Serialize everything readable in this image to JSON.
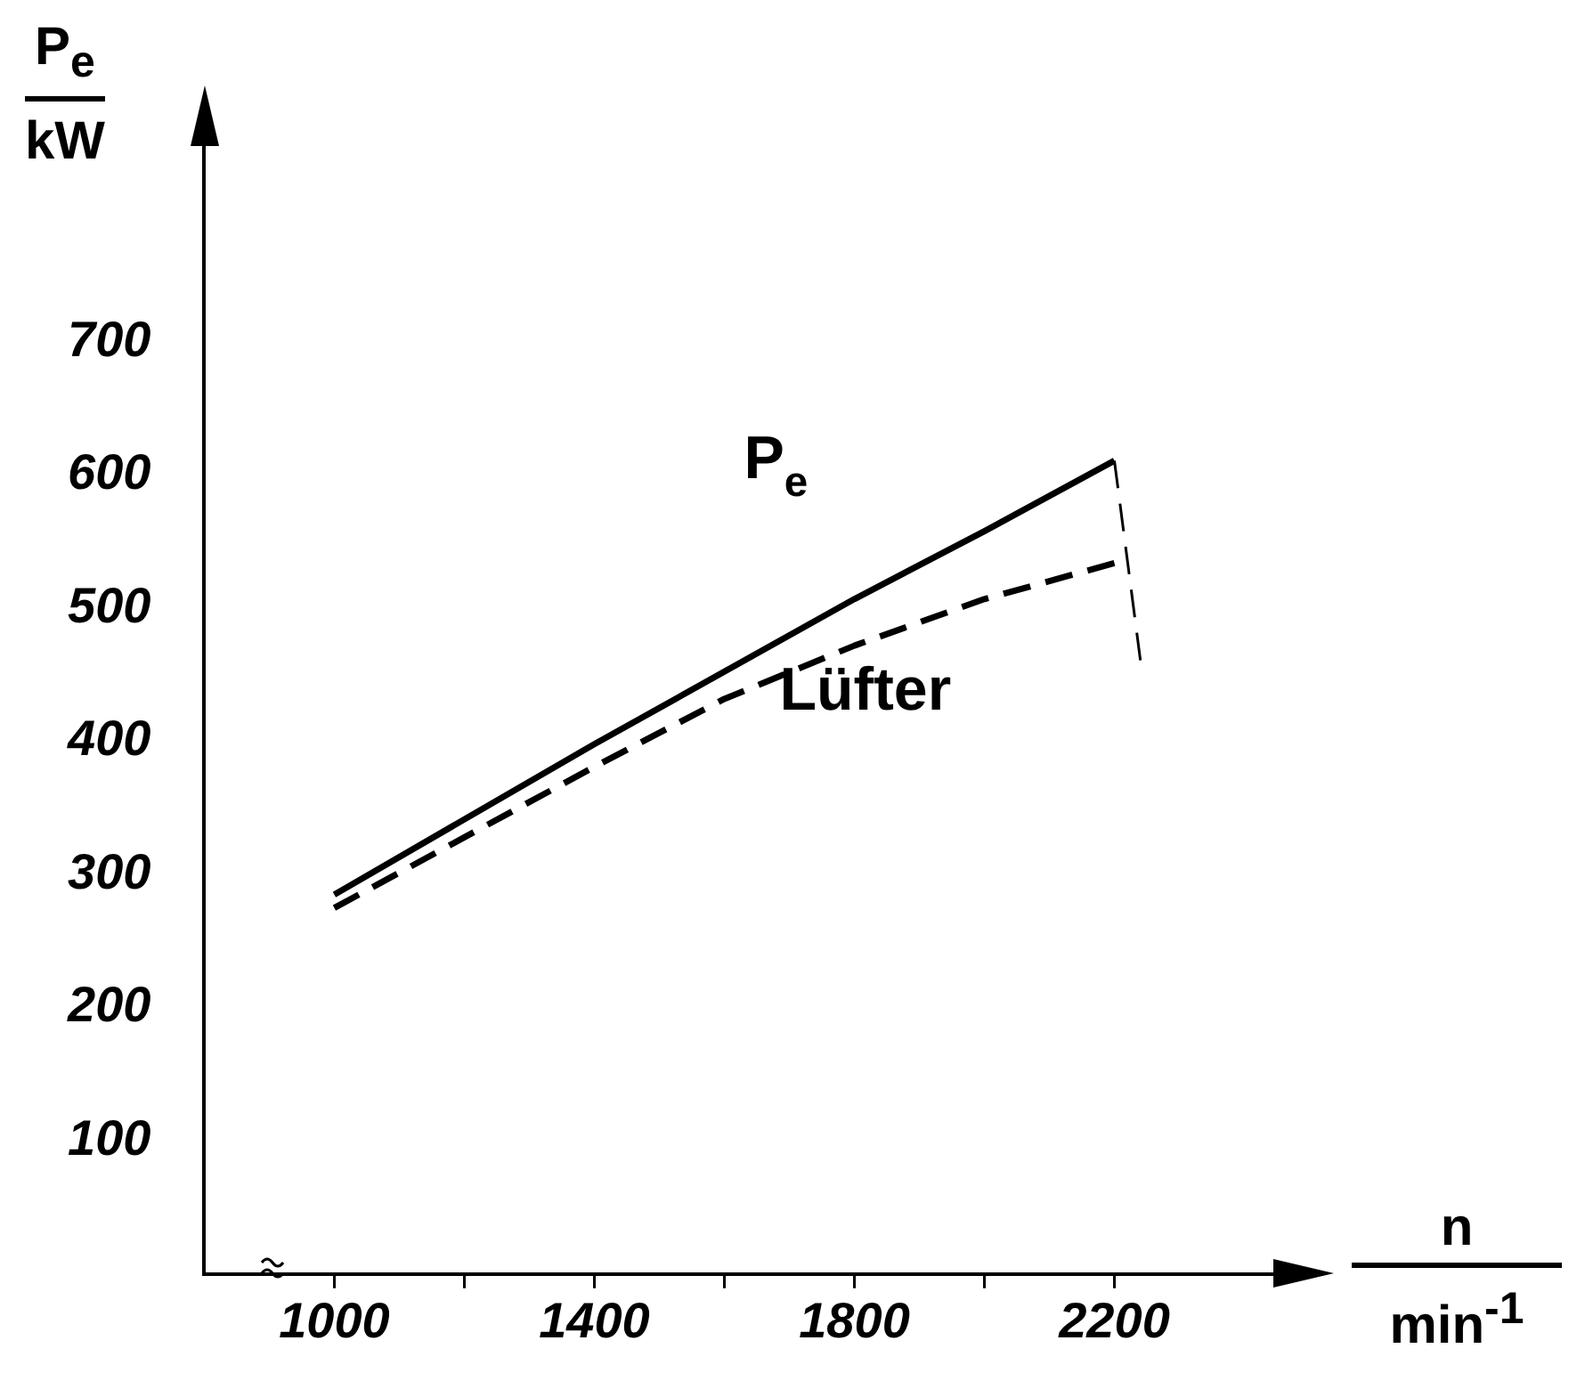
{
  "chart_data": {
    "type": "line",
    "xlabel": "n",
    "ylabel": "P$_{e}$",
    "annotations": [
      "kW",
      "min$^{-1}$"
    ],
    "xlim": [
      800,
      2450
    ],
    "xticks": [
      1000,
      {
        "value": 1200,
        "label": null
      },
      1400,
      {
        "value": 1600,
        "label": null
      },
      1800,
      {
        "value": 2000,
        "label": null
      },
      2200
    ],
    "ylim": [
      0,
      850
    ],
    "yticks": [
      100,
      200,
      300,
      400,
      500,
      600,
      700
    ],
    "grid": false,
    "legend": false,
    "marker": "none",
    "series": [
      {
        "name": "P$_{e}$",
        "color": "#000000",
        "line_style": "solid",
        "x": [
          1000,
          1400,
          1800,
          2000,
          2200
        ],
        "values": [
          285,
          398,
          507,
          558,
          611
        ]
      },
      {
        "name": "Lüfter",
        "color": "#000000",
        "line_style": "dashed",
        "x": [
          1000,
          1400,
          1600,
          1800,
          2000,
          2200
        ],
        "values": [
          275,
          381,
          432,
          472,
          507,
          534
        ]
      },
      {
        "color": "#000000",
        "line_style": "dashed",
        "x": [
          2200,
          2240
        ],
        "values": [
          611,
          461
        ]
      }
    ]
  }
}
